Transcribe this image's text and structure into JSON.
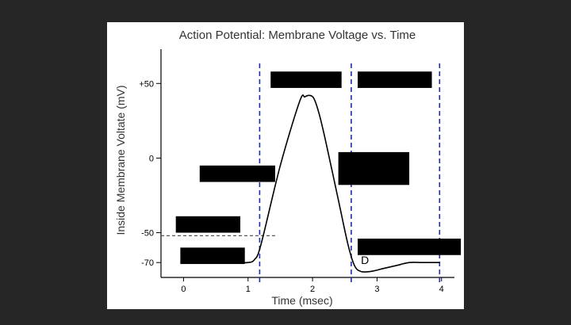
{
  "chart_data": {
    "type": "line",
    "title": "Action Potential: Membrane Voltage vs. Time",
    "xlabel": "Time (msec)",
    "ylabel": "Inside Membrane Voltate (mV)",
    "xlim": [
      -0.35,
      4.2
    ],
    "ylim": [
      -80,
      73
    ],
    "x_ticks": [
      {
        "value": 0,
        "label": "0"
      },
      {
        "value": 1,
        "label": "1"
      },
      {
        "value": 2,
        "label": "2"
      },
      {
        "value": 3,
        "label": "3"
      },
      {
        "value": 4,
        "label": "4"
      }
    ],
    "y_ticks": [
      {
        "value": 50,
        "label": "+50"
      },
      {
        "value": 0,
        "label": "0"
      },
      {
        "value": -50,
        "label": "-50"
      },
      {
        "value": -70,
        "label": "-70"
      }
    ],
    "threshold": -52,
    "vertical_lines": [
      1.18,
      2.6,
      3.97
    ],
    "series": [
      {
        "x": [
          -0.05,
          0.4,
          0.8,
          1.0,
          1.1,
          1.2,
          1.5,
          1.8,
          1.88,
          1.95,
          2.02,
          2.1,
          2.2,
          2.4,
          2.55,
          2.65,
          2.75,
          2.9,
          3.1,
          3.3,
          3.5,
          3.7,
          3.9,
          3.97
        ],
        "y": [
          -70,
          -70,
          -70,
          -70,
          -68,
          -58,
          -5,
          38,
          41,
          42,
          40,
          30,
          12,
          -28,
          -58,
          -72,
          -76,
          -76,
          -74,
          -72,
          -70,
          -70,
          -70,
          -70
        ]
      }
    ],
    "annotations": [
      {
        "text": "D",
        "x": 2.75,
        "y": -70
      }
    ],
    "redactions": [
      {
        "x0": 1.35,
        "x1": 2.45,
        "y0": 47,
        "y1": 58
      },
      {
        "x0": 2.7,
        "x1": 3.85,
        "y0": 47,
        "y1": 58
      },
      {
        "x0": 2.4,
        "x1": 3.5,
        "y0": -18,
        "y1": 4
      },
      {
        "x0": 0.25,
        "x1": 1.42,
        "y0": -16,
        "y1": -5
      },
      {
        "x0": -0.12,
        "x1": 0.88,
        "y0": -50,
        "y1": -39
      },
      {
        "x0": -0.05,
        "x1": 0.95,
        "y0": -71,
        "y1": -60
      },
      {
        "x0": 2.7,
        "x1": 4.3,
        "y0": -65,
        "y1": -54
      }
    ],
    "grid": false,
    "colors": {
      "curve": "#000000",
      "guide": "#1f2fa8",
      "threshold": "#444444",
      "redaction": "#000000"
    }
  }
}
